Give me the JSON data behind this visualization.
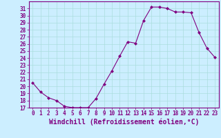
{
  "x": [
    0,
    1,
    2,
    3,
    4,
    5,
    6,
    7,
    8,
    9,
    10,
    11,
    12,
    13,
    14,
    15,
    16,
    17,
    18,
    19,
    20,
    21,
    22,
    23
  ],
  "y": [
    20.5,
    19.2,
    18.4,
    18.0,
    17.2,
    17.0,
    17.0,
    17.0,
    18.3,
    20.3,
    22.2,
    24.3,
    26.3,
    26.1,
    29.3,
    31.2,
    31.2,
    31.0,
    30.5,
    30.5,
    30.4,
    27.6,
    25.4,
    24.1
  ],
  "line_color": "#800080",
  "marker": "D",
  "marker_size": 2.0,
  "bg_color": "#cceeff",
  "grid_color": "#aadddd",
  "xlabel": "Windchill (Refroidissement éolien,°C)",
  "ylim": [
    17,
    32
  ],
  "xlim": [
    -0.5,
    23.5
  ],
  "yticks": [
    17,
    18,
    19,
    20,
    21,
    22,
    23,
    24,
    25,
    26,
    27,
    28,
    29,
    30,
    31
  ],
  "xticks": [
    0,
    1,
    2,
    3,
    4,
    5,
    6,
    7,
    8,
    9,
    10,
    11,
    12,
    13,
    14,
    15,
    16,
    17,
    18,
    19,
    20,
    21,
    22,
    23
  ],
  "tick_fontsize": 5.5,
  "xlabel_fontsize": 7.0,
  "spine_color": "#800080",
  "line_width": 0.8
}
